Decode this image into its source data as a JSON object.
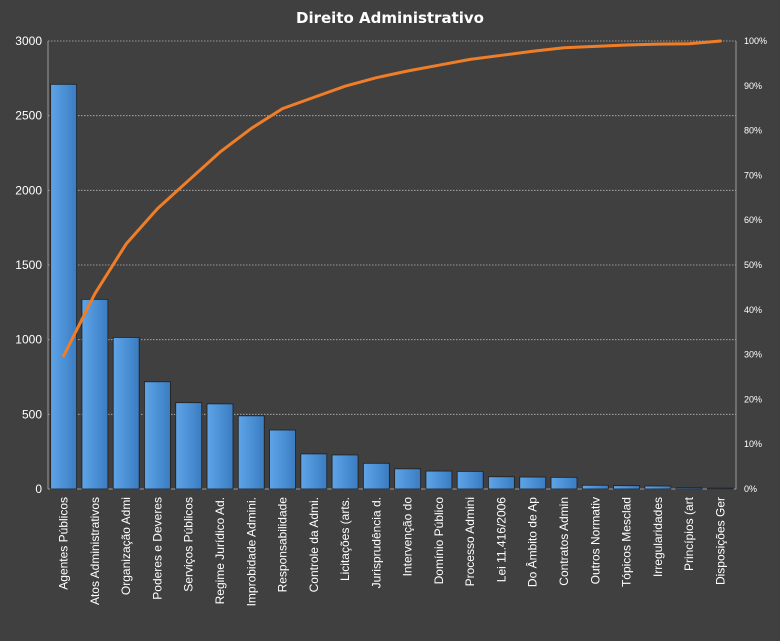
{
  "chart_data": {
    "type": "bar",
    "title": "Direito  Administrativo",
    "categories": [
      "Agentes Públicos",
      "Atos Administrativos",
      "Organização Admi",
      "Poderes e Deveres",
      "Serviços Públicos",
      "Regime Jurídico Ad.",
      "Improbidade Admini.",
      "Responsabilidade",
      "Controle da Admi.",
      "Licitações (arts.",
      "Jurisprudência d.",
      "Intervenção do",
      "Domínio Público",
      "Processo Admini",
      "Lei 11.416/2006",
      "Do Âmbito de Ap",
      "Contratos Admin",
      "Outros Normativ",
      "Tópicos Mesclad",
      "Irregularidades",
      "Princípios (art",
      "Disposições Ger"
    ],
    "series": [
      {
        "type": "bar",
        "axis": "left",
        "color": "#4a8fd4",
        "values": [
          2710,
          1270,
          1015,
          718,
          578,
          570,
          490,
          395,
          235,
          228,
          172,
          135,
          120,
          118,
          82,
          80,
          78,
          25,
          22,
          20,
          8,
          6
        ]
      },
      {
        "type": "line",
        "axis": "right",
        "color": "#f07d28",
        "values": [
          29.7,
          43.6,
          54.7,
          62.6,
          68.9,
          75.2,
          80.5,
          84.9,
          87.4,
          89.9,
          91.8,
          93.3,
          94.6,
          95.9,
          96.8,
          97.7,
          98.5,
          98.8,
          99.1,
          99.3,
          99.4,
          100
        ]
      }
    ],
    "y_left": {
      "min": 0,
      "max": 3000,
      "ticks": [
        "0",
        "500",
        "1000",
        "1500",
        "2000",
        "2500",
        "3000"
      ]
    },
    "y_right": {
      "min": 0,
      "max": 100,
      "ticks": [
        "0%",
        "10%",
        "20%",
        "30%",
        "40%",
        "50%",
        "60%",
        "70%",
        "80%",
        "90%",
        "100%"
      ]
    },
    "grid": true,
    "legend": "none"
  }
}
